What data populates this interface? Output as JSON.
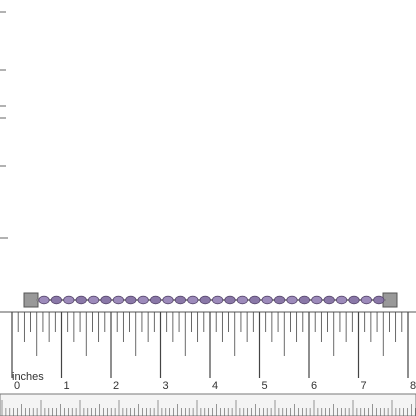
{
  "ruler": {
    "unit_label": "inches",
    "inch_labels": [
      "0",
      "1",
      "2",
      "3",
      "4",
      "5",
      "6",
      "7",
      "8"
    ]
  }
}
